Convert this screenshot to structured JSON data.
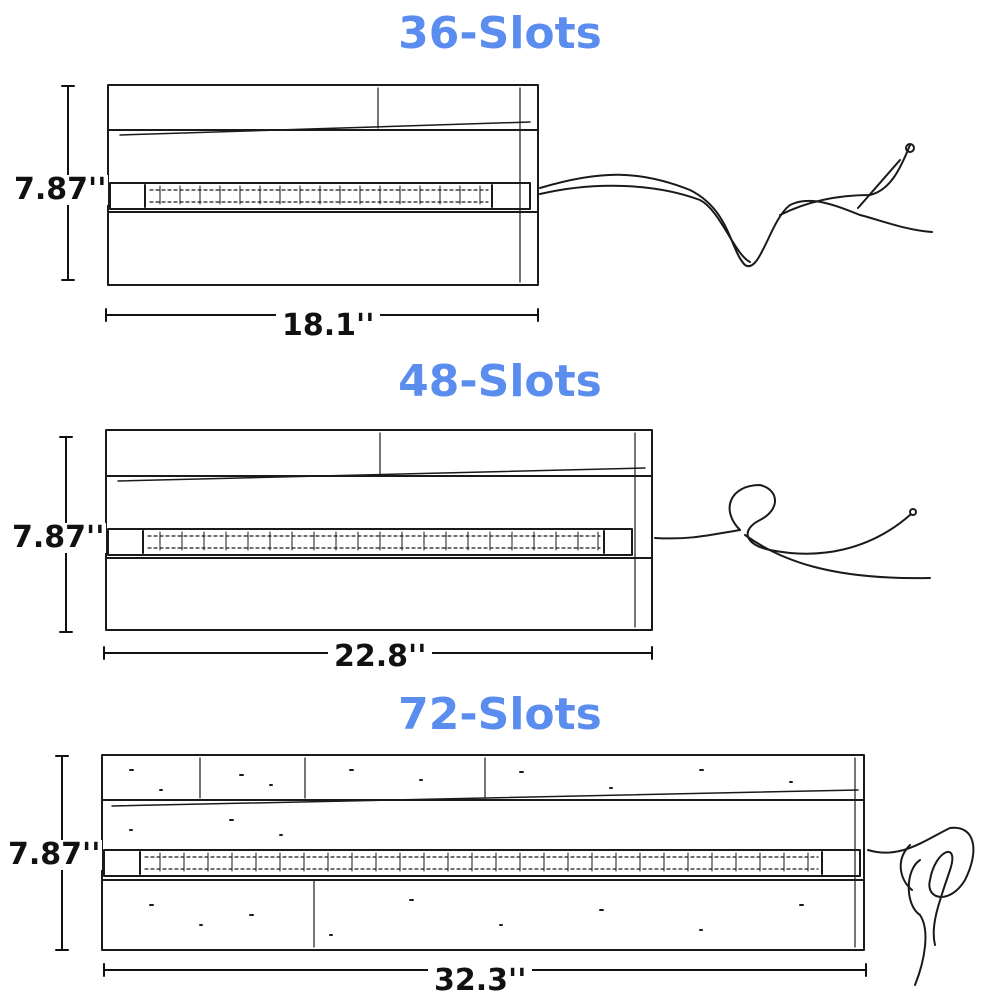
{
  "title_color": "#5b8def",
  "line_color": "#1a1a1a",
  "rolls": [
    {
      "title": "36-Slots",
      "height_label": "7.87''",
      "width_label": "18.1''"
    },
    {
      "title": "48-Slots",
      "height_label": "7.87''",
      "width_label": "22.8''"
    },
    {
      "title": "72-Slots",
      "height_label": "7.87''",
      "width_label": "32.3''"
    }
  ]
}
